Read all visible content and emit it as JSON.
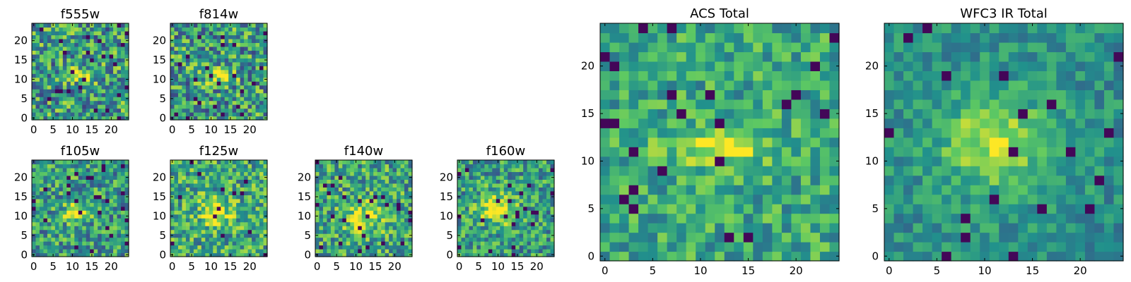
{
  "figure": {
    "colormap": [
      "#440154",
      "#3b528b",
      "#21918c",
      "#5ec962",
      "#fde725"
    ]
  },
  "chart_data": [
    {
      "type": "heatmap",
      "title": "f555w",
      "grid_size": 25,
      "xlim": [
        0,
        24
      ],
      "ylim": [
        0,
        24
      ],
      "x_ticks": [
        0,
        5,
        10,
        15,
        20
      ],
      "y_ticks": [
        0,
        5,
        10,
        15,
        20
      ],
      "source": {
        "kind": "noisy",
        "seed": 11,
        "cx": 12,
        "cy": 11,
        "sx": 3,
        "sy": 1.2,
        "amp": 0.45,
        "base": 0.55,
        "noise": 0.35
      }
    },
    {
      "type": "heatmap",
      "title": "f814w",
      "grid_size": 25,
      "xlim": [
        0,
        24
      ],
      "ylim": [
        0,
        24
      ],
      "x_ticks": [
        0,
        5,
        10,
        15,
        20
      ],
      "y_ticks": [
        0,
        5,
        10,
        15,
        20
      ],
      "source": {
        "kind": "noisy",
        "seed": 23,
        "cx": 12,
        "cy": 11,
        "sx": 3,
        "sy": 1.2,
        "amp": 0.45,
        "base": 0.55,
        "noise": 0.35
      }
    },
    {
      "type": "heatmap",
      "title": "f105w",
      "grid_size": 25,
      "xlim": [
        0,
        24
      ],
      "ylim": [
        0,
        24
      ],
      "x_ticks": [
        0,
        5,
        10,
        15,
        20
      ],
      "y_ticks": [
        0,
        5,
        10,
        15,
        20
      ],
      "source": {
        "kind": "noisy",
        "seed": 37,
        "cx": 11,
        "cy": 11,
        "sx": 2.2,
        "sy": 1.6,
        "amp": 0.45,
        "base": 0.55,
        "noise": 0.3
      }
    },
    {
      "type": "heatmap",
      "title": "f125w",
      "grid_size": 25,
      "xlim": [
        0,
        24
      ],
      "ylim": [
        0,
        24
      ],
      "x_ticks": [
        0,
        5,
        10,
        15,
        20
      ],
      "y_ticks": [
        0,
        5,
        10,
        15,
        20
      ],
      "source": {
        "kind": "noisy",
        "seed": 41,
        "cx": 11,
        "cy": 11,
        "sx": 3,
        "sy": 2.5,
        "amp": 0.35,
        "base": 0.6,
        "noise": 0.3
      }
    },
    {
      "type": "heatmap",
      "title": "f140w",
      "grid_size": 25,
      "xlim": [
        0,
        24
      ],
      "ylim": [
        0,
        24
      ],
      "x_ticks": [
        0,
        5,
        10,
        15,
        20
      ],
      "y_ticks": [
        0,
        5,
        10,
        15,
        20
      ],
      "source": {
        "kind": "noisy",
        "seed": 53,
        "cx": 12,
        "cy": 10,
        "sx": 3.5,
        "sy": 3,
        "amp": 0.35,
        "base": 0.58,
        "noise": 0.3
      }
    },
    {
      "type": "heatmap",
      "title": "f160w",
      "grid_size": 25,
      "xlim": [
        0,
        24
      ],
      "ylim": [
        0,
        24
      ],
      "x_ticks": [
        0,
        5,
        10,
        15,
        20
      ],
      "y_ticks": [
        0,
        5,
        10,
        15,
        20
      ],
      "source": {
        "kind": "noisy",
        "seed": 67,
        "cx": 10,
        "cy": 12,
        "sx": 3.5,
        "sy": 3,
        "amp": 0.4,
        "base": 0.55,
        "noise": 0.28
      }
    },
    {
      "type": "heatmap",
      "title": "ACS Total",
      "grid_size": 25,
      "xlim": [
        0,
        24
      ],
      "ylim": [
        0,
        24
      ],
      "x_ticks": [
        0,
        5,
        10,
        15,
        20
      ],
      "y_ticks": [
        0,
        5,
        10,
        15,
        20
      ],
      "source": {
        "kind": "noisy",
        "seed": 79,
        "cx": 12,
        "cy": 11.5,
        "sx": 3.5,
        "sy": 1.3,
        "amp": 0.4,
        "base": 0.6,
        "noise": 0.22
      }
    },
    {
      "type": "heatmap",
      "title": "WFC3 IR Total",
      "grid_size": 25,
      "xlim": [
        0,
        24
      ],
      "ylim": [
        0,
        24
      ],
      "x_ticks": [
        0,
        5,
        10,
        15,
        20
      ],
      "y_ticks": [
        0,
        5,
        10,
        15,
        20
      ],
      "source": {
        "kind": "noisy",
        "seed": 97,
        "cx": 11,
        "cy": 12,
        "sx": 4,
        "sy": 3.5,
        "amp": 0.4,
        "base": 0.5,
        "noise": 0.16
      }
    }
  ]
}
